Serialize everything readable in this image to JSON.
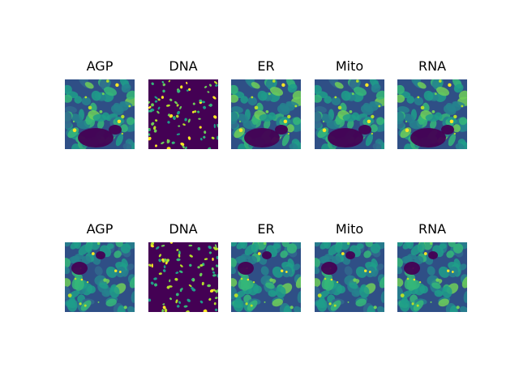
{
  "figure": {
    "rows": [
      {
        "panels": [
          {
            "title": "AGP",
            "channel": "AGP",
            "colormap": "viridis"
          },
          {
            "title": "DNA",
            "channel": "DNA",
            "colormap": "viridis"
          },
          {
            "title": "ER",
            "channel": "ER",
            "colormap": "viridis"
          },
          {
            "title": "Mito",
            "channel": "Mito",
            "colormap": "viridis"
          },
          {
            "title": "RNA",
            "channel": "RNA",
            "colormap": "viridis"
          }
        ]
      },
      {
        "panels": [
          {
            "title": "AGP",
            "channel": "AGP",
            "colormap": "viridis"
          },
          {
            "title": "DNA",
            "channel": "DNA",
            "colormap": "viridis"
          },
          {
            "title": "ER",
            "channel": "ER",
            "colormap": "viridis"
          },
          {
            "title": "Mito",
            "channel": "Mito",
            "colormap": "viridis"
          },
          {
            "title": "RNA",
            "channel": "RNA",
            "colormap": "viridis"
          }
        ]
      }
    ]
  },
  "colors": {
    "background_low": "#440154",
    "tissue_mid": "#31688e",
    "cell_high": "#35b779",
    "bright_peak": "#fde725"
  }
}
